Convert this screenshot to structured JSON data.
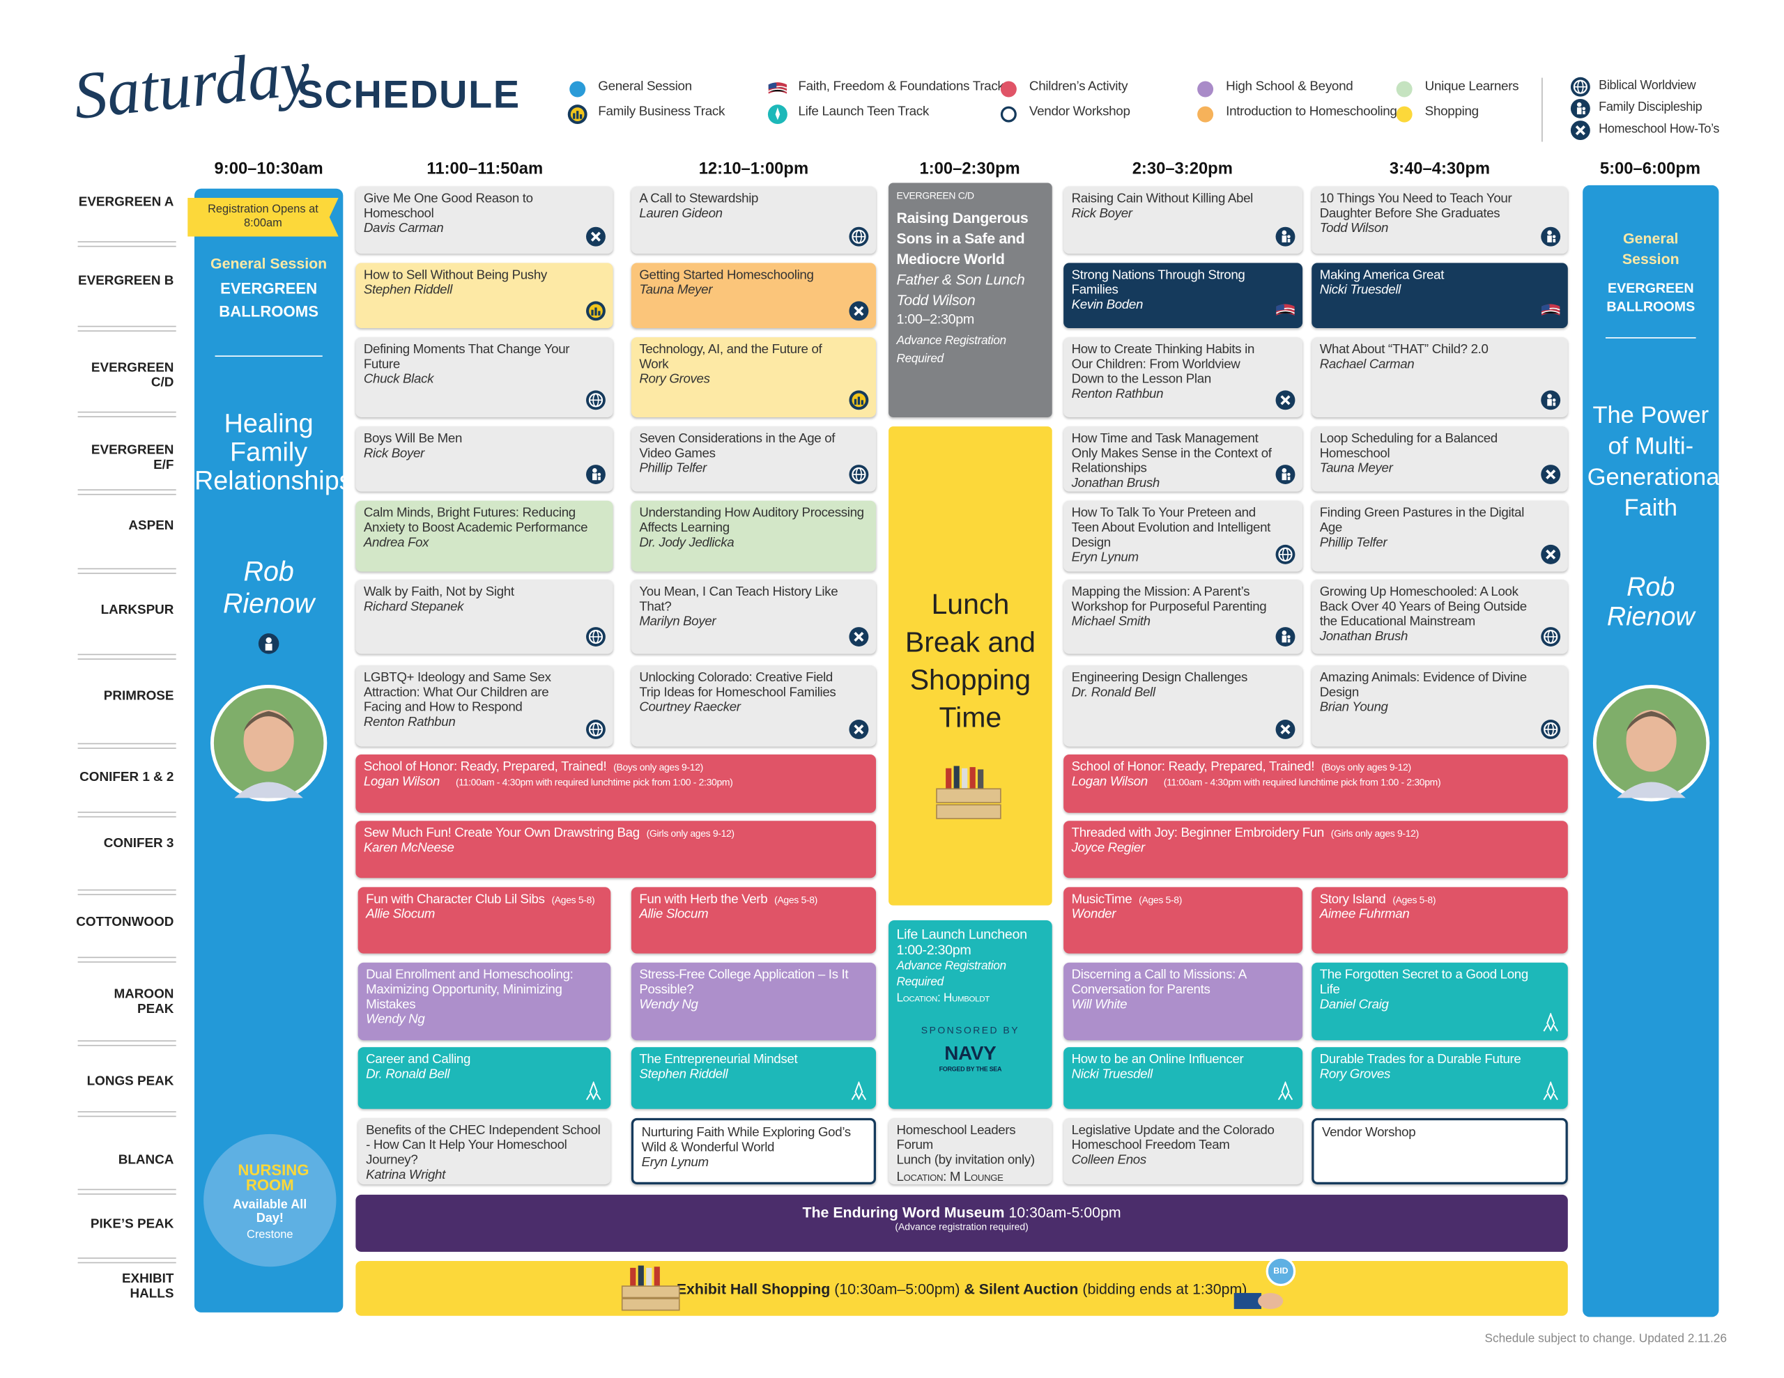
{
  "header": {
    "script": "Saturday",
    "title": "SCHEDULE"
  },
  "legend": {
    "tracks": [
      "General Session",
      "Family Business Track",
      "Faith, Freedom & Foundations Track",
      "Life Launch Teen Track",
      "Children’s Activity",
      "Vendor Workshop",
      "High School & Beyond",
      "Introduction to Homeschooling",
      "Unique Learners",
      "Shopping"
    ],
    "icons": [
      "Biblical Worldview",
      "Family Discipleship",
      "Homeschool How-To’s"
    ]
  },
  "times": [
    "9:00–10:30am",
    "11:00–11:50am",
    "12:10–1:00pm",
    "1:00–2:30pm",
    "2:30–3:20pm",
    "3:40–4:30pm",
    "5:00–6:00pm"
  ],
  "rooms": [
    "EVERGREEN A",
    "EVERGREEN B",
    "EVERGREEN C/D",
    "EVERGREEN E/F",
    "ASPEN",
    "LARKSPUR",
    "PRIMROSE",
    "CONIFER 1 & 2",
    "CONIFER 3",
    "COTTONWOOD",
    "MAROON PEAK",
    "LONGS PEAK",
    "BLANCA",
    "PIKE’S PEAK",
    "EXHIBIT HALLS"
  ],
  "general_sessions": [
    {
      "badge": "Registration Opens at 8:00am",
      "label": "General Session",
      "location": "EVERGREEN BALLROOMS",
      "title": "Healing Family Relationships",
      "speaker": "Rob Rienow"
    },
    {
      "label": "General Session",
      "location": "EVERGREEN BALLROOMS",
      "title": "The Power of Multi-Generational Faith",
      "speaker": "Rob Rienow"
    }
  ],
  "nursing_room": {
    "title": "NURSING ROOM",
    "text": "Available All Day!",
    "location": "Crestone"
  },
  "sessions": [
    {
      "title": "Give Me One Good Reason to Homeschool",
      "speaker": "Davis Carman"
    },
    {
      "title": "How to Sell Without Being Pushy",
      "speaker": "Stephen Riddell"
    },
    {
      "title": "Defining Moments That Change Your Future",
      "speaker": "Chuck Black"
    },
    {
      "title": "Boys Will Be Men",
      "speaker": "Rick Boyer"
    },
    {
      "title": "Calm Minds, Bright Futures: Reducing Anxiety to Boost Academic Performance",
      "speaker": "Andrea Fox"
    },
    {
      "title": "Walk by Faith, Not by Sight",
      "speaker": "Richard Stepanek"
    },
    {
      "title": "LGBTQ+ Ideology and Same Sex Attraction: What Our Children are Facing and How to Respond",
      "speaker": "Renton Rathbun"
    },
    {
      "title": "A Call to Stewardship",
      "speaker": "Lauren Gideon"
    },
    {
      "title": "Getting Started Homeschooling",
      "speaker": "Tauna Meyer"
    },
    {
      "title": "Technology, AI, and the Future of Work",
      "speaker": "Rory Groves"
    },
    {
      "title": "Seven Considerations in the Age of Video Games",
      "speaker": "Phillip Telfer"
    },
    {
      "title": "Understanding How Auditory Processing Affects Learning",
      "speaker": "Dr. Jody Jedlicka"
    },
    {
      "title": "You Mean, I Can Teach History Like That?",
      "speaker": "Marilyn Boyer"
    },
    {
      "title": "Unlocking Colorado: Creative Field Trip Ideas for Homeschool Families",
      "speaker": "Courtney Raecker"
    },
    {
      "title": "Raising Cain Without Killing Abel",
      "speaker": "Rick Boyer"
    },
    {
      "title": "Strong Nations Through Strong Families",
      "speaker": "Kevin Boden"
    },
    {
      "title": "How to Create Thinking Habits in Our Children: From Worldview Down to the Lesson Plan",
      "speaker": "Renton Rathbun"
    },
    {
      "title": "How Time and Task Management Only Makes Sense in the Context of Relationships",
      "speaker": "Jonathan Brush"
    },
    {
      "title": "How To Talk To Your Preteen and Teen About Evolution and Intelligent Design",
      "speaker": "Eryn Lynum"
    },
    {
      "title": "Mapping the Mission: A Parent’s Workshop for Purposeful Parenting",
      "speaker": "Michael Smith"
    },
    {
      "title": "Engineering Design Challenges",
      "speaker": "Dr. Ronald Bell"
    },
    {
      "title": "10 Things You Need to Teach Your Daughter Before She Graduates",
      "speaker": "Todd Wilson"
    },
    {
      "title": "Making America Great",
      "speaker": "Nicki Truesdell"
    },
    {
      "title": "What About “THAT” Child? 2.0",
      "speaker": "Rachael Carman"
    },
    {
      "title": "Loop Scheduling for a Balanced Homeschool",
      "speaker": "Tauna Meyer"
    },
    {
      "title": "Finding Green Pastures in the Digital Age",
      "speaker": "Phillip Telfer"
    },
    {
      "title": "Growing Up Homeschooled: A Look Back Over 40 Years of Being Outside the Educational Mainstream",
      "speaker": "Jonathan Brush"
    },
    {
      "title": "Amazing Animals: Evidence of Divine Design",
      "speaker": "Brian Young"
    },
    {
      "title": "School of Honor: Ready, Prepared, Trained!",
      "tag": "(Boys only ages 9-12)",
      "speaker": "Logan Wilson",
      "note": "(11:00am - 4:30pm with required lunchtime pick from 1:00 - 2:30pm)"
    },
    {
      "title": "School of Honor: Ready, Prepared, Trained!",
      "tag": "(Boys only ages 9-12)",
      "speaker": "Logan Wilson",
      "note": "(11:00am - 4:30pm with required lunchtime pick from 1:00 - 2:30pm)"
    },
    {
      "title": "Sew Much Fun! Create Your Own Drawstring Bag",
      "tag": "(Girls only ages 9-12)",
      "speaker": "Karen McNeese"
    },
    {
      "title": "Threaded with Joy: Beginner Embroidery Fun",
      "tag": "(Girls only ages 9-12)",
      "speaker": "Joyce Regier"
    },
    {
      "title": "Fun with Character Club Lil Sibs",
      "tag": "(Ages 5-8)",
      "speaker": "Allie Slocum"
    },
    {
      "title": "Fun with Herb the Verb",
      "tag": "(Ages 5-8)",
      "speaker": "Allie Slocum"
    },
    {
      "title": "MusicTime",
      "tag": "(Ages 5-8)",
      "speaker": "Wonder"
    },
    {
      "title": "Story Island",
      "tag": "(Ages 5-8)",
      "speaker": "Aimee Fuhrman"
    },
    {
      "title": "Dual Enrollment and Homeschooling: Maximizing Opportunity, Minimizing Mistakes",
      "speaker": "Wendy Ng"
    },
    {
      "title": "Stress-Free College Application – Is It Possible?",
      "speaker": "Wendy Ng"
    },
    {
      "title": "Discerning a Call to Missions: A Conversation for Parents",
      "speaker": "Will White"
    },
    {
      "title": "The Forgotten Secret to a Good Long Life",
      "speaker": "Daniel Craig"
    },
    {
      "title": "Career and Calling",
      "speaker": "Dr. Ronald Bell"
    },
    {
      "title": "The Entrepreneurial Mindset",
      "speaker": "Stephen Riddell"
    },
    {
      "title": "How to be an Online Influencer",
      "speaker": "Nicki Truesdell"
    },
    {
      "title": "Durable Trades for a Durable Future",
      "speaker": "Rory Groves"
    },
    {
      "title": "Benefits of the CHEC Independent School - How Can It Help Your Homeschool Journey?",
      "speaker": "Katrina Wright"
    },
    {
      "title": "Nurturing Faith While Exploring God’s Wild & Wonderful World",
      "speaker": "Eryn Lynum"
    },
    {
      "title": "Legislative Update and the Colorado Homeschool Freedom Team",
      "speaker": "Colleen Enos"
    },
    {
      "title": "Vendor Worshop"
    }
  ],
  "lunch_session": {
    "room": "EVERGREEN C/D",
    "title": "Raising Dangerous Sons in a Safe and Mediocre World",
    "subtitle": "Father & Son Lunch",
    "speaker": "Todd Wilson",
    "time": "1:00–2:30pm",
    "note": "Advance Registration Required"
  },
  "lunch_break": "Lunch Break and Shopping Time",
  "life_launch": {
    "title": "Life Launch Luncheon",
    "time": "1:00-2:30pm",
    "note": "Advance Registration Required",
    "location": "Location: Humboldt",
    "sponsor": "SPONSORED BY",
    "logo": "NAVY",
    "tagline": "FORGED BY THE SEA"
  },
  "leaders_forum": {
    "title": "Homeschool Leaders Forum",
    "subtitle": "Lunch (by invitation only)",
    "location": "Location: M Lounge"
  },
  "museum": {
    "title": "The Enduring Word Museum",
    "time": "10:30am-5:00pm",
    "note": "(Advance registration required)"
  },
  "exhibit": {
    "title": "Exhibit Hall Shopping",
    "time": "(10:30am–5:00pm)",
    "auction": "& Silent Auction",
    "auction_note": "(bidding ends at 1:30pm)",
    "bid": "BID"
  },
  "footer": "Schedule subject to change. Updated 2.11.26"
}
